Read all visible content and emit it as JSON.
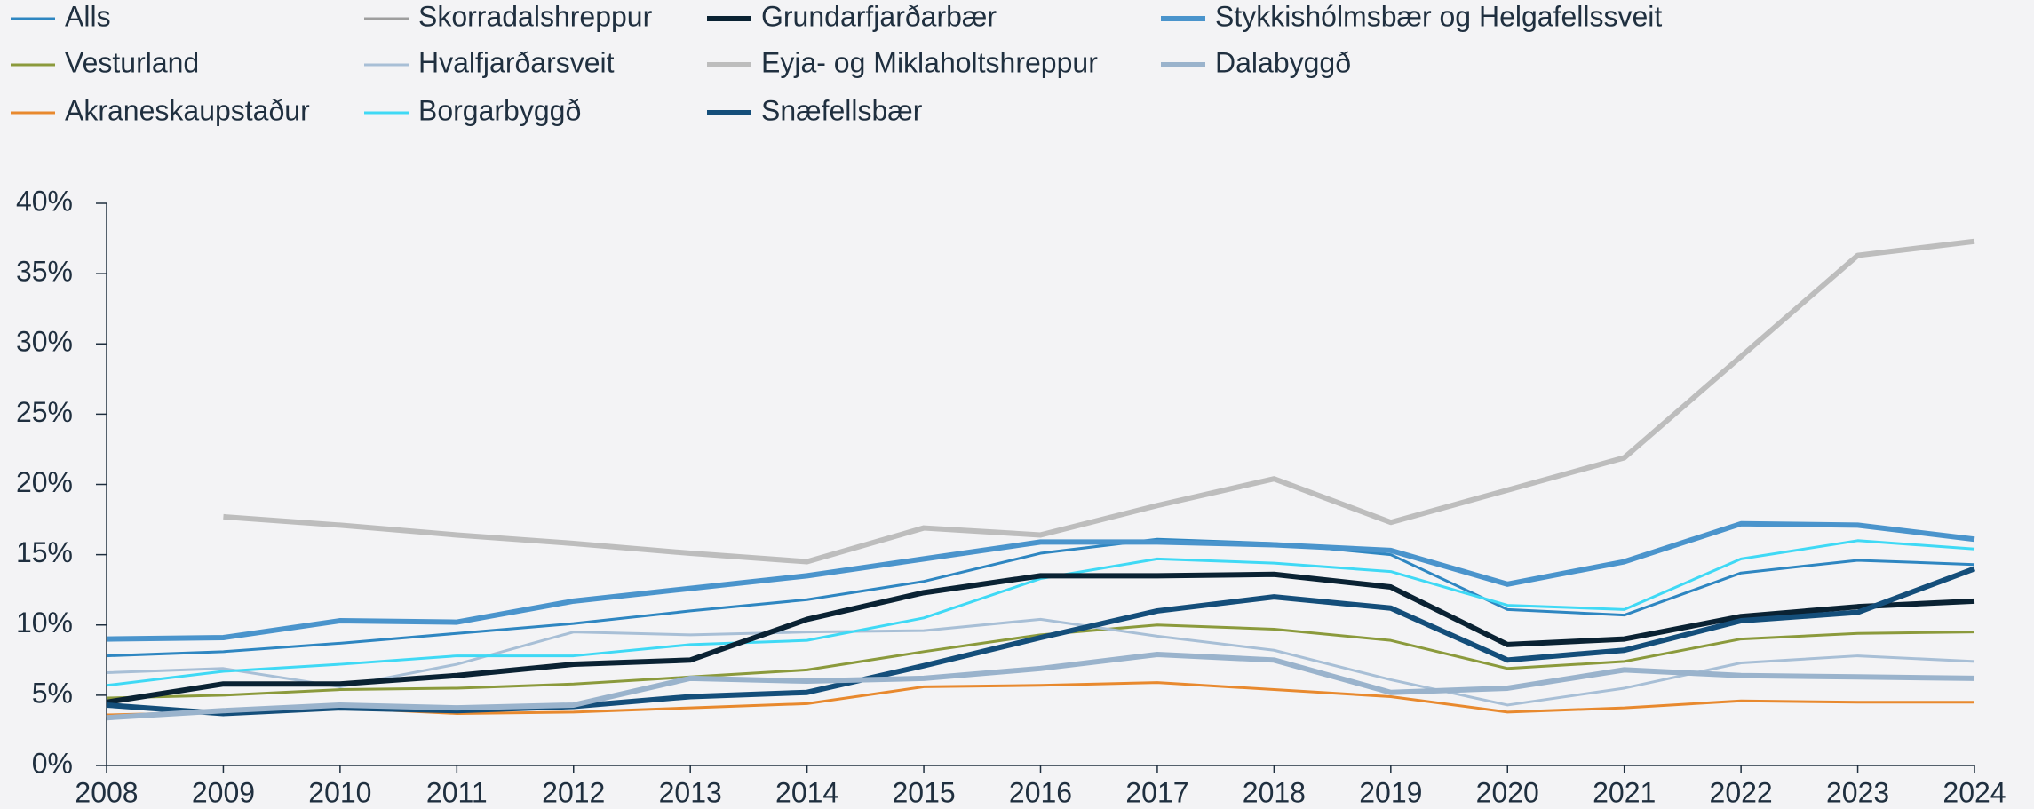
{
  "chart_data": {
    "type": "line",
    "x": [
      2008,
      2009,
      2010,
      2011,
      2012,
      2013,
      2014,
      2015,
      2016,
      2017,
      2018,
      2019,
      2020,
      2021,
      2022,
      2023,
      2024
    ],
    "xlim": [
      2008,
      2024
    ],
    "xticks": [
      2008,
      2009,
      2010,
      2011,
      2012,
      2013,
      2014,
      2015,
      2016,
      2017,
      2018,
      2019,
      2020,
      2021,
      2022,
      2023,
      2024
    ],
    "ylim": [
      0,
      40
    ],
    "yticks": [
      {
        "value": 0,
        "label": "0%"
      },
      {
        "value": 5,
        "label": "5%"
      },
      {
        "value": 10,
        "label": "10%"
      },
      {
        "value": 15,
        "label": "15%"
      },
      {
        "value": 20,
        "label": "20%"
      },
      {
        "value": 25,
        "label": "25%"
      },
      {
        "value": 30,
        "label": "30%"
      },
      {
        "value": 35,
        "label": "35%"
      },
      {
        "value": 40,
        "label": "40%"
      }
    ],
    "legend": "top",
    "series": [
      {
        "name": "Alls",
        "color": "#2e86c1",
        "values": [
          7.8,
          8.1,
          8.7,
          9.4,
          10.1,
          11.0,
          11.8,
          13.1,
          15.1,
          16.1,
          15.8,
          15.0,
          11.1,
          10.7,
          13.7,
          14.6,
          14.3
        ]
      },
      {
        "name": "Vesturland",
        "color": "#8b9a3c",
        "values": [
          4.8,
          5.0,
          5.4,
          5.5,
          5.8,
          6.3,
          6.8,
          8.1,
          9.3,
          10.0,
          9.7,
          8.9,
          6.9,
          7.4,
          9.0,
          9.4,
          9.5
        ]
      },
      {
        "name": "Akraneskaupstaður",
        "color": "#e8892e",
        "values": [
          3.6,
          3.8,
          4.1,
          3.7,
          3.8,
          4.1,
          4.4,
          5.6,
          5.7,
          5.9,
          5.4,
          4.9,
          3.8,
          4.1,
          4.6,
          4.5,
          4.5
        ]
      },
      {
        "name": "Skorradalshreppur",
        "color": "#9e9e9e",
        "values": [
          null,
          null,
          null,
          null,
          null,
          null,
          null,
          null,
          null,
          null,
          null,
          null,
          null,
          null,
          null,
          null,
          null
        ]
      },
      {
        "name": "Hvalfjarðarsveit",
        "color": "#a8bfd6",
        "values": [
          6.6,
          6.9,
          5.6,
          7.2,
          9.5,
          9.3,
          9.5,
          9.6,
          10.4,
          9.2,
          8.2,
          6.1,
          4.3,
          5.5,
          7.3,
          7.8,
          7.4
        ]
      },
      {
        "name": "Borgarbyggð",
        "color": "#3fd9f5",
        "values": [
          5.7,
          6.7,
          7.2,
          7.8,
          7.8,
          8.6,
          8.9,
          10.5,
          13.3,
          14.7,
          14.4,
          13.8,
          11.4,
          11.1,
          14.7,
          16.0,
          15.4
        ]
      },
      {
        "name": "Grundarfjarðarbær",
        "color": "#0a2233",
        "values": [
          4.5,
          5.8,
          5.8,
          6.4,
          7.2,
          7.5,
          10.4,
          12.3,
          13.5,
          13.5,
          13.6,
          12.7,
          8.6,
          9.0,
          10.6,
          11.3,
          11.7
        ]
      },
      {
        "name": "Eyja- og Miklaholtshreppur",
        "color": "#bdbdbd",
        "values": [
          null,
          17.7,
          17.1,
          16.4,
          15.8,
          15.1,
          14.5,
          16.9,
          16.4,
          18.5,
          20.4,
          17.3,
          19.6,
          21.9,
          29.1,
          36.3,
          37.3
        ]
      },
      {
        "name": "Snæfellsbær",
        "color": "#144e7a",
        "values": [
          4.3,
          3.7,
          4.1,
          3.9,
          4.2,
          4.9,
          5.2,
          7.1,
          9.1,
          11.0,
          12.0,
          11.2,
          7.5,
          8.2,
          10.3,
          10.9,
          14.0
        ]
      },
      {
        "name": "Stykkishólmsbær og Helgafellssveit",
        "color": "#4a94cc",
        "values": [
          9.0,
          9.1,
          10.3,
          10.2,
          11.7,
          12.6,
          13.5,
          14.7,
          15.9,
          15.9,
          15.7,
          15.3,
          12.9,
          14.5,
          17.2,
          17.1,
          16.1
        ]
      },
      {
        "name": "Dalabyggð",
        "color": "#9ab3cc",
        "values": [
          3.4,
          3.9,
          4.3,
          4.1,
          4.3,
          6.2,
          6.0,
          6.2,
          6.9,
          7.9,
          7.5,
          5.2,
          5.5,
          6.8,
          6.4,
          6.3,
          6.2
        ]
      }
    ]
  }
}
